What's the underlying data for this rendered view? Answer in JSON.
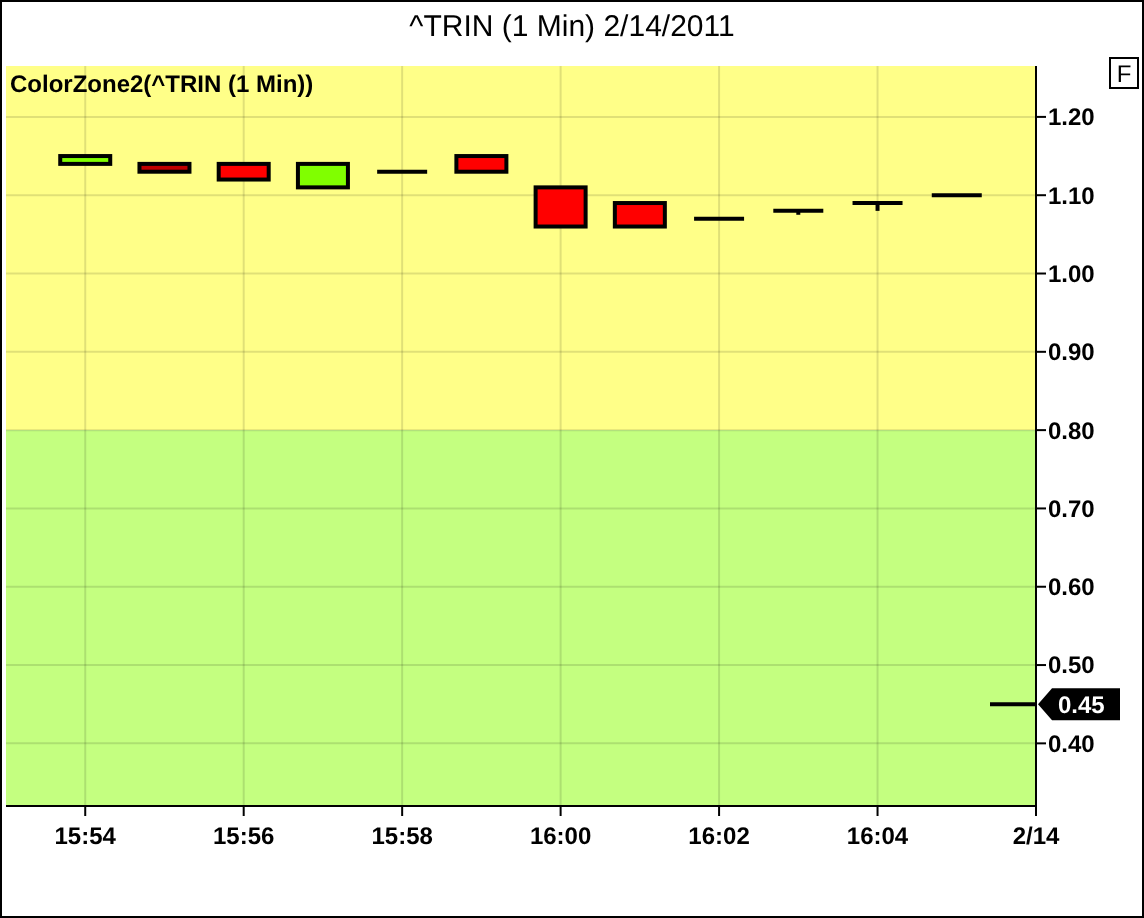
{
  "chart_data": {
    "type": "candlestick",
    "title": "^TRIN (1 Min)  2/14/2011",
    "subtitle": "ColorZone2(^TRIN (1 Min))",
    "x": [
      "2011-02-14T15:54",
      "2011-02-14T15:55",
      "2011-02-14T15:56",
      "2011-02-14T15:57",
      "2011-02-14T15:58",
      "2011-02-14T15:59",
      "2011-02-14T16:00",
      "2011-02-14T16:01",
      "2011-02-14T16:02",
      "2011-02-14T16:03",
      "2011-02-14T16:04",
      "2011-02-14T16:05"
    ],
    "ohlc": [
      [
        1.14,
        1.15,
        1.14,
        1.15
      ],
      [
        1.14,
        1.14,
        1.13,
        1.13
      ],
      [
        1.14,
        1.14,
        1.12,
        1.12
      ],
      [
        1.11,
        1.14,
        1.11,
        1.14
      ],
      [
        1.13,
        1.13,
        1.13,
        1.13
      ],
      [
        1.15,
        1.15,
        1.13,
        1.13
      ],
      [
        1.11,
        1.11,
        1.06,
        1.06
      ],
      [
        1.09,
        1.09,
        1.06,
        1.06
      ],
      [
        1.07,
        1.07,
        1.07,
        1.07
      ],
      [
        1.08,
        1.08,
        1.075,
        1.08
      ],
      [
        1.09,
        1.09,
        1.08,
        1.09
      ],
      [
        1.1,
        1.1,
        1.1,
        1.1
      ]
    ],
    "colors": [
      "#80ff00",
      "#c00000",
      "#ff0000",
      "#80ff00",
      "#000000",
      "#ff0000",
      "#ff0000",
      "#ff0000",
      "#000000",
      "#000000",
      "#000000",
      "#000000"
    ],
    "xlim": [
      "2011-02-14T15:53",
      "2011-02-14T16:06"
    ],
    "xticks": [
      {
        "value": "2011-02-14T15:54",
        "label": "15:54"
      },
      {
        "value": "2011-02-14T15:56",
        "label": "15:56"
      },
      {
        "value": "2011-02-14T15:58",
        "label": "15:58"
      },
      {
        "value": "2011-02-14T16:00",
        "label": "16:00"
      },
      {
        "value": "2011-02-14T16:02",
        "label": "16:02"
      },
      {
        "value": "2011-02-14T16:04",
        "label": "16:04"
      },
      {
        "value": "2011-02-14T16:06",
        "label": "2/14"
      }
    ],
    "ylim": [
      0.32,
      1.265
    ],
    "yticks": [
      {
        "value": 0.4,
        "label": "0.40"
      },
      {
        "value": 0.5,
        "label": "0.50"
      },
      {
        "value": 0.6,
        "label": "0.60"
      },
      {
        "value": 0.7,
        "label": "0.70"
      },
      {
        "value": 0.8,
        "label": "0.80"
      },
      {
        "value": 0.9,
        "label": "0.90"
      },
      {
        "value": 1.0,
        "label": "1.00"
      },
      {
        "value": 1.1,
        "label": "1.10"
      },
      {
        "value": 1.2,
        "label": "1.20"
      }
    ],
    "bands": [
      {
        "axis": "y",
        "from": 0.8,
        "to": 1.265,
        "color": "#ffff88"
      },
      {
        "axis": "y",
        "from": 0.32,
        "to": 0.8,
        "color": "#c4ff80"
      }
    ],
    "grid": true,
    "annotations": [
      "F",
      {
        "text": "0.45",
        "y": 0.45
      }
    ]
  }
}
